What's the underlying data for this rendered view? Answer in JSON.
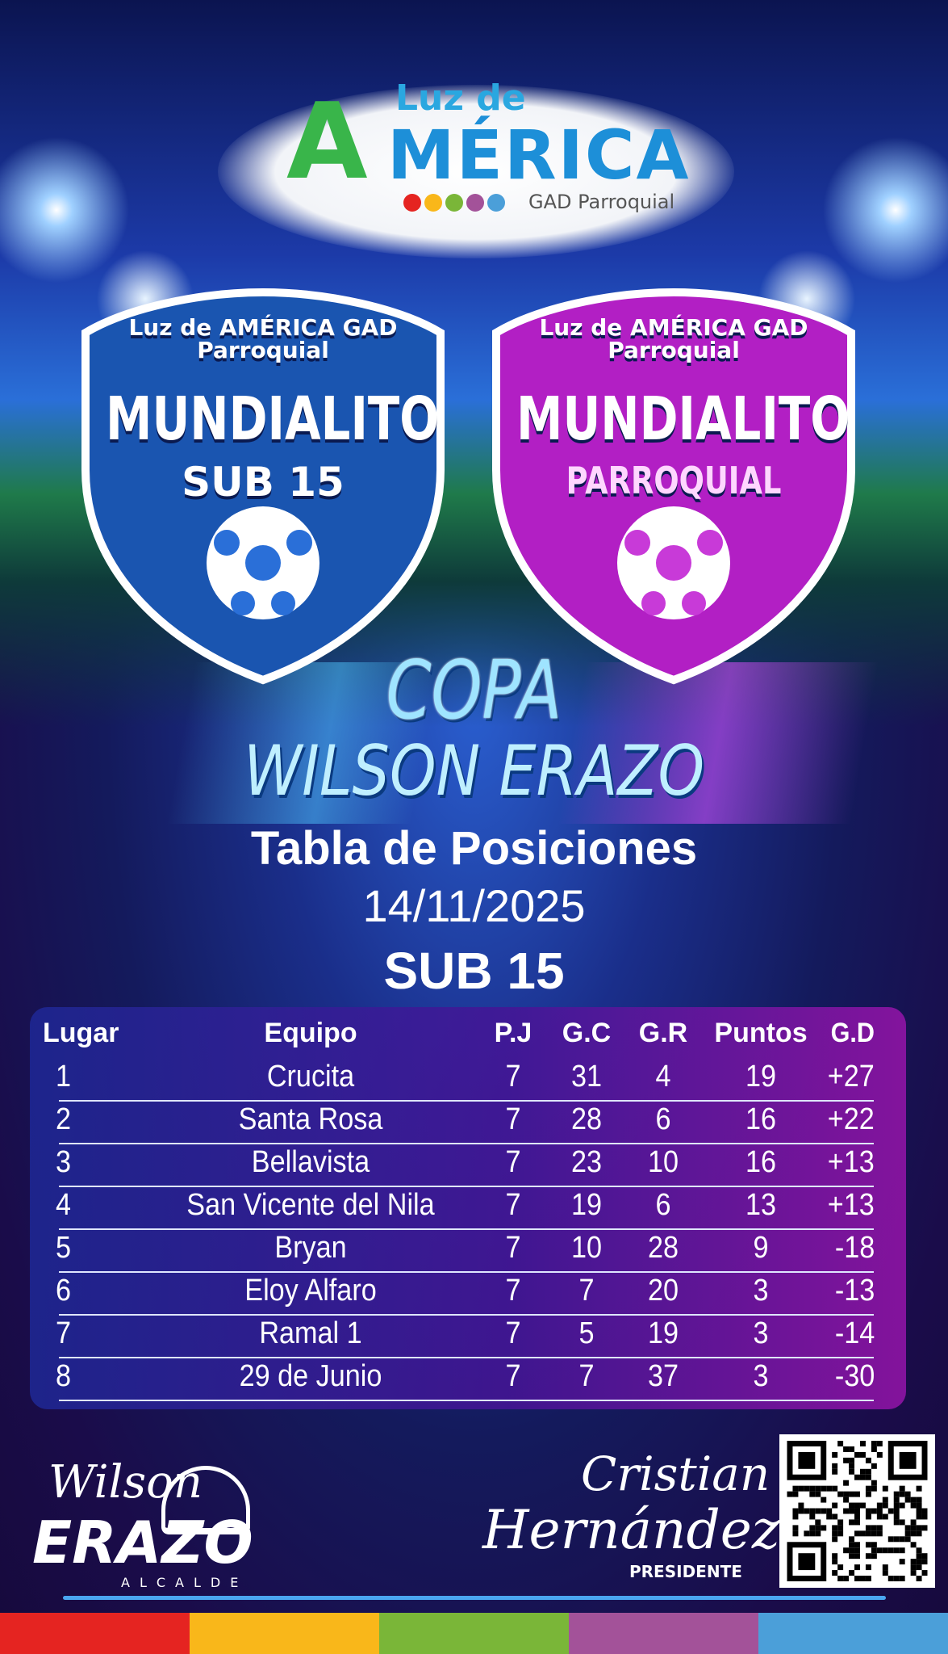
{
  "header_logo": {
    "line1": "Luz de",
    "line2": "MÉRICA",
    "initial": "A",
    "subtitle": "GAD Parroquial",
    "dot_colors": [
      "#e52421",
      "#f9b71a",
      "#7ab638",
      "#a35299",
      "#4b9fd9"
    ]
  },
  "badges": [
    {
      "logo": "Luz de AMÉRICA GAD Parroquial",
      "title": "MUNDIALITO",
      "subtitle": "SUB 15",
      "color": "#1a55b0"
    },
    {
      "logo": "Luz de AMÉRICA GAD Parroquial",
      "title": "MUNDIALITO",
      "subtitle": "PARROQUIAL",
      "color": "#b21fc4"
    }
  ],
  "title": {
    "copa": "COPA",
    "name": "WILSON ERAZO",
    "table_title": "Tabla de Posiciones",
    "date": "14/11/2025",
    "category": "SUB 15"
  },
  "table": {
    "headers": [
      "Lugar",
      "Equipo",
      "P.J",
      "G.C",
      "G.R",
      "Puntos",
      "G.D"
    ],
    "rows": [
      [
        "1",
        "Crucita",
        "7",
        "31",
        "4",
        "19",
        "+27"
      ],
      [
        "2",
        "Santa Rosa",
        "7",
        "28",
        "6",
        "16",
        "+22"
      ],
      [
        "3",
        "Bellavista",
        "7",
        "23",
        "10",
        "16",
        "+13"
      ],
      [
        "4",
        "San Vicente del Nila",
        "7",
        "19",
        "6",
        "13",
        "+13"
      ],
      [
        "5",
        "Bryan",
        "7",
        "10",
        "28",
        "9",
        "-18"
      ],
      [
        "6",
        "Eloy Alfaro",
        "7",
        "7",
        "20",
        "3",
        "-13"
      ],
      [
        "7",
        "Ramal 1",
        "7",
        "5",
        "19",
        "3",
        "-14"
      ],
      [
        "8",
        "29 de Junio",
        "7",
        "7",
        "37",
        "3",
        "-30"
      ]
    ]
  },
  "footer": {
    "left_logo": {
      "script": "Wilson",
      "name": "ERAZO",
      "role": "ALCALDE"
    },
    "right_logo": {
      "script1": "Cristian",
      "script2": "Hernández",
      "role": "PRESIDENTE"
    },
    "qr": "qr-code",
    "stripe_colors": [
      "#e52421",
      "#f9b71a",
      "#7ab638",
      "#a35299",
      "#4b9fd9"
    ]
  }
}
